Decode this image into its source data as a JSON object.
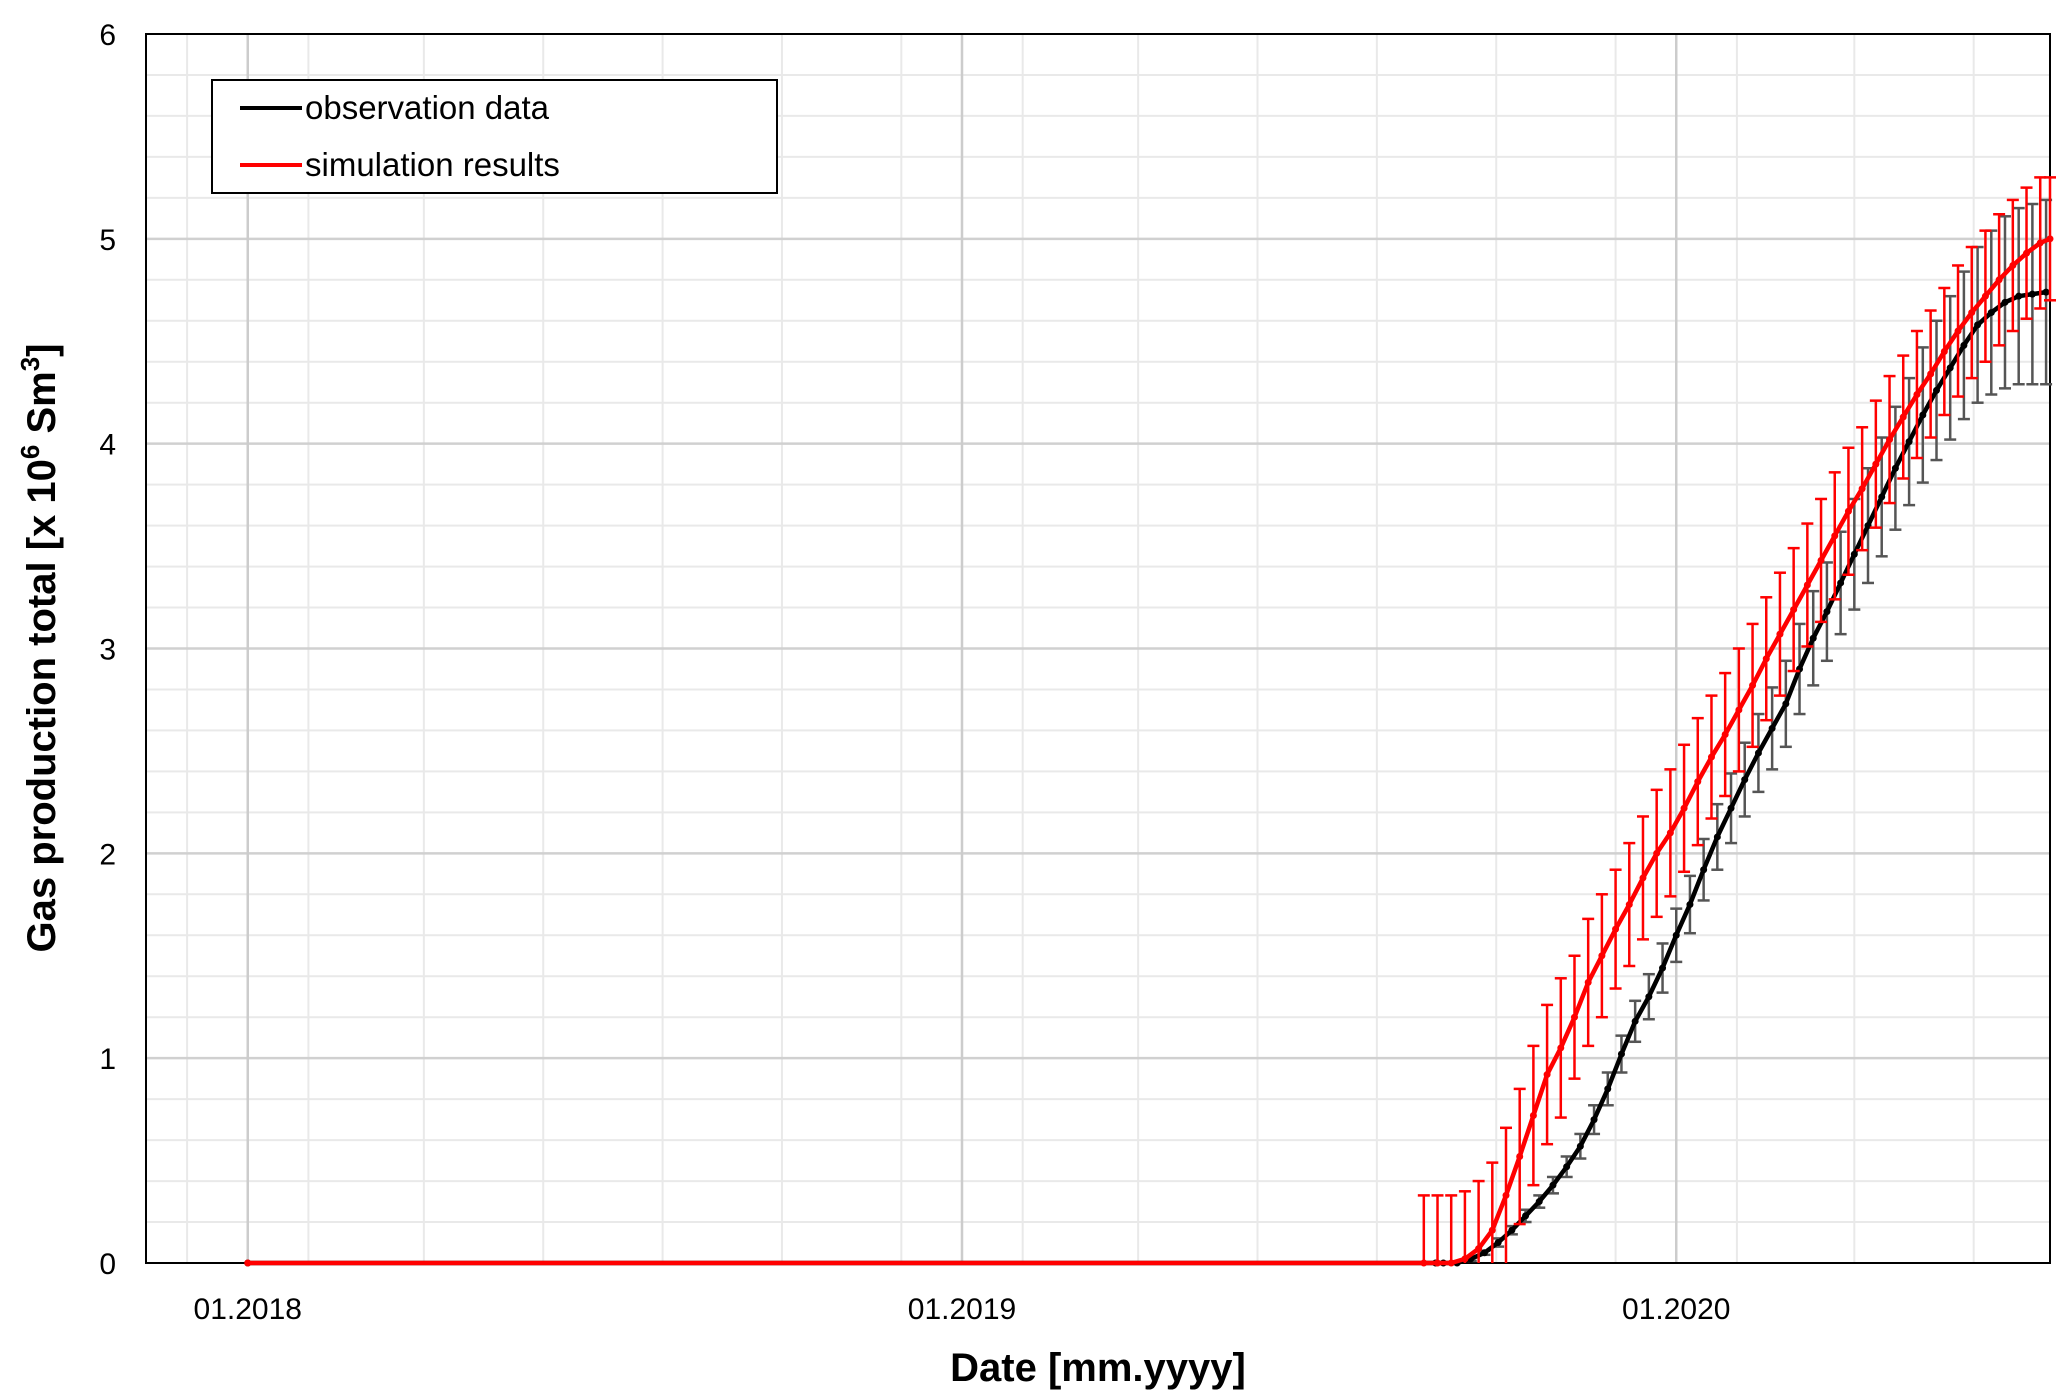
{
  "chart_data": {
    "type": "line",
    "xlabel": "Date [mm.yyyy]",
    "ylabel": {
      "prefix": "Gas production total [x 10",
      "sup1": "6",
      "mid": " Sm",
      "sup2": "3",
      "suffix": "]"
    },
    "x_ticks": [
      "01.2018",
      "01.2019",
      "01.2020"
    ],
    "y_ticks": [
      "0",
      "1",
      "2",
      "3",
      "4",
      "5",
      "6"
    ],
    "xlim": [
      "2017-11-10",
      "2020-07-10"
    ],
    "ylim": [
      0,
      6
    ],
    "grid": true,
    "legend_position": "top-left",
    "series": [
      {
        "name": "observation data",
        "color": "#000000",
        "errorbar_color": "#555555",
        "x": [
          "2018-01-01",
          "2019-08-31",
          "2019-09-04",
          "2019-09-11",
          "2019-09-18",
          "2019-09-25",
          "2019-10-02",
          "2019-10-09",
          "2019-10-16",
          "2019-10-23",
          "2019-10-30",
          "2019-11-06",
          "2019-11-13",
          "2019-11-20",
          "2019-11-27",
          "2019-12-04",
          "2019-12-11",
          "2019-12-18",
          "2019-12-25",
          "2020-01-01",
          "2020-01-08",
          "2020-01-15",
          "2020-01-22",
          "2020-01-29",
          "2020-02-05",
          "2020-02-12",
          "2020-02-19",
          "2020-02-26",
          "2020-03-04",
          "2020-03-11",
          "2020-03-18",
          "2020-03-25",
          "2020-04-01",
          "2020-04-08",
          "2020-04-15",
          "2020-04-22",
          "2020-04-29",
          "2020-05-06",
          "2020-05-13",
          "2020-05-20",
          "2020-05-27",
          "2020-06-03",
          "2020-06-10",
          "2020-06-17",
          "2020-06-24",
          "2020-07-01",
          "2020-07-08"
        ],
        "y": [
          0,
          0,
          0,
          0,
          0.02,
          0.05,
          0.1,
          0.16,
          0.23,
          0.3,
          0.38,
          0.47,
          0.57,
          0.7,
          0.85,
          1.02,
          1.18,
          1.3,
          1.44,
          1.6,
          1.75,
          1.92,
          2.08,
          2.22,
          2.36,
          2.49,
          2.61,
          2.73,
          2.9,
          3.05,
          3.18,
          3.32,
          3.46,
          3.6,
          3.74,
          3.88,
          4.01,
          4.14,
          4.26,
          4.37,
          4.48,
          4.58,
          4.64,
          4.69,
          4.72,
          4.73,
          4.74
        ],
        "err": [
          0,
          0,
          0,
          0,
          0.01,
          0.01,
          0.02,
          0.02,
          0.03,
          0.03,
          0.04,
          0.05,
          0.06,
          0.07,
          0.08,
          0.09,
          0.1,
          0.11,
          0.12,
          0.13,
          0.14,
          0.15,
          0.16,
          0.17,
          0.18,
          0.19,
          0.2,
          0.21,
          0.22,
          0.23,
          0.24,
          0.25,
          0.27,
          0.28,
          0.29,
          0.3,
          0.31,
          0.33,
          0.34,
          0.35,
          0.36,
          0.38,
          0.4,
          0.42,
          0.43,
          0.44,
          0.45
        ]
      },
      {
        "name": "simulation results",
        "color": "#ff0000",
        "errorbar_color": "#ff0000",
        "x": [
          "2018-01-01",
          "2019-08-25",
          "2019-09-01",
          "2019-09-08",
          "2019-09-15",
          "2019-09-22",
          "2019-09-29",
          "2019-10-06",
          "2019-10-13",
          "2019-10-20",
          "2019-10-27",
          "2019-11-03",
          "2019-11-10",
          "2019-11-17",
          "2019-11-24",
          "2019-12-01",
          "2019-12-08",
          "2019-12-15",
          "2019-12-22",
          "2019-12-29",
          "2020-01-05",
          "2020-01-12",
          "2020-01-19",
          "2020-01-26",
          "2020-02-02",
          "2020-02-09",
          "2020-02-16",
          "2020-02-23",
          "2020-03-01",
          "2020-03-08",
          "2020-03-15",
          "2020-03-22",
          "2020-03-29",
          "2020-04-05",
          "2020-04-12",
          "2020-04-19",
          "2020-04-26",
          "2020-05-03",
          "2020-05-10",
          "2020-05-17",
          "2020-05-24",
          "2020-05-31",
          "2020-06-07",
          "2020-06-14",
          "2020-06-21",
          "2020-06-28",
          "2020-07-05",
          "2020-07-10"
        ],
        "y": [
          0,
          0,
          0,
          0,
          0.02,
          0.07,
          0.16,
          0.33,
          0.52,
          0.72,
          0.92,
          1.05,
          1.2,
          1.37,
          1.5,
          1.63,
          1.75,
          1.88,
          2.0,
          2.1,
          2.22,
          2.35,
          2.47,
          2.58,
          2.7,
          2.82,
          2.95,
          3.07,
          3.19,
          3.31,
          3.43,
          3.55,
          3.67,
          3.78,
          3.9,
          4.02,
          4.13,
          4.24,
          4.34,
          4.45,
          4.55,
          4.64,
          4.72,
          4.8,
          4.87,
          4.93,
          4.98,
          5.0
        ],
        "err": [
          0,
          0.33,
          0.33,
          0.33,
          0.33,
          0.33,
          0.33,
          0.33,
          0.33,
          0.34,
          0.34,
          0.34,
          0.3,
          0.31,
          0.3,
          0.29,
          0.3,
          0.3,
          0.31,
          0.31,
          0.31,
          0.31,
          0.3,
          0.3,
          0.3,
          0.3,
          0.3,
          0.3,
          0.3,
          0.3,
          0.3,
          0.31,
          0.31,
          0.3,
          0.31,
          0.31,
          0.3,
          0.31,
          0.31,
          0.31,
          0.32,
          0.32,
          0.32,
          0.32,
          0.32,
          0.32,
          0.32,
          0.3
        ]
      }
    ]
  }
}
